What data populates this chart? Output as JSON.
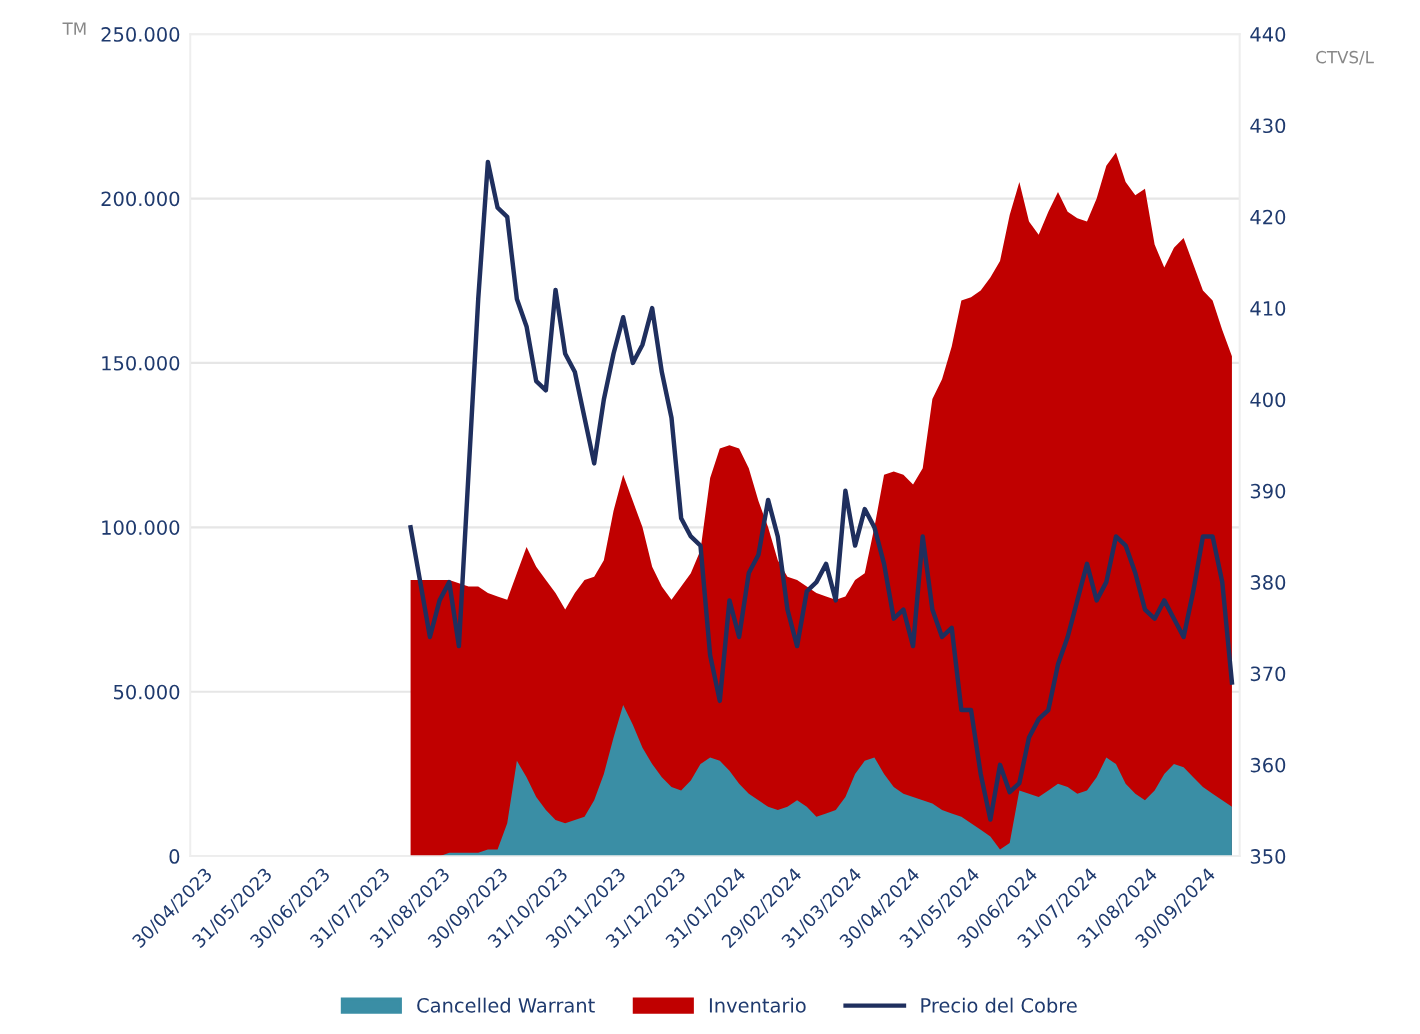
{
  "chart_data": {
    "type": "area",
    "ylabel": "TM",
    "y2label": "CTVS/L",
    "x": [
      "2023-08-15",
      "2023-08-20",
      "2023-08-25",
      "2023-08-30",
      "2023-09-04",
      "2023-09-09",
      "2023-09-14",
      "2023-09-19",
      "2023-09-24",
      "2023-09-29",
      "2023-10-04",
      "2023-10-09",
      "2023-10-14",
      "2023-10-19",
      "2023-10-24",
      "2023-10-29",
      "2023-11-03",
      "2023-11-08",
      "2023-11-13",
      "2023-11-18",
      "2023-11-23",
      "2023-11-28",
      "2023-12-03",
      "2023-12-08",
      "2023-12-13",
      "2023-12-18",
      "2023-12-23",
      "2023-12-28",
      "2024-01-02",
      "2024-01-07",
      "2024-01-12",
      "2024-01-17",
      "2024-01-22",
      "2024-01-27",
      "2024-02-01",
      "2024-02-06",
      "2024-02-11",
      "2024-02-16",
      "2024-02-21",
      "2024-02-26",
      "2024-03-02",
      "2024-03-07",
      "2024-03-12",
      "2024-03-17",
      "2024-03-22",
      "2024-03-27",
      "2024-04-01",
      "2024-04-06",
      "2024-04-11",
      "2024-04-16",
      "2024-04-21",
      "2024-04-26",
      "2024-05-01",
      "2024-05-06",
      "2024-05-11",
      "2024-05-16",
      "2024-05-21",
      "2024-05-26",
      "2024-05-31",
      "2024-06-05",
      "2024-06-10",
      "2024-06-15",
      "2024-06-20",
      "2024-06-25",
      "2024-06-30",
      "2024-07-05",
      "2024-07-10",
      "2024-07-15",
      "2024-07-20",
      "2024-07-25",
      "2024-07-30",
      "2024-08-04",
      "2024-08-09",
      "2024-08-14",
      "2024-08-19",
      "2024-08-24",
      "2024-08-29",
      "2024-09-03",
      "2024-09-08",
      "2024-09-13",
      "2024-09-18",
      "2024-09-23",
      "2024-09-28",
      "2024-10-03",
      "2024-10-08",
      "2024-10-13"
    ],
    "series": [
      {
        "name": "Cancelled Warrant",
        "color": "#3a8ea5",
        "values": [
          0,
          0,
          0,
          0,
          1000,
          1000,
          1000,
          1000,
          2000,
          2000,
          10000,
          29000,
          24000,
          18000,
          14000,
          11000,
          10000,
          11000,
          12000,
          17000,
          25000,
          36000,
          46000,
          40000,
          33000,
          28000,
          24000,
          21000,
          20000,
          23000,
          28000,
          30000,
          29000,
          26000,
          22000,
          19000,
          17000,
          15000,
          14000,
          15000,
          17000,
          15000,
          12000,
          13000,
          14000,
          18000,
          25000,
          29000,
          30000,
          25000,
          21000,
          19000,
          18000,
          17000,
          16000,
          14000,
          13000,
          12000,
          10000,
          8000,
          6000,
          2000,
          4000,
          20000,
          19000,
          18000,
          20000,
          22000,
          21000,
          19000,
          20000,
          24000,
          30000,
          28000,
          22000,
          19000,
          17000,
          20000,
          25000,
          28000,
          27000,
          24000,
          21000,
          19000,
          17000,
          15000
        ]
      },
      {
        "name": "Inventario",
        "color": "#c00000",
        "values": [
          84000,
          84000,
          84000,
          84000,
          84000,
          83000,
          82000,
          82000,
          80000,
          79000,
          78000,
          86000,
          94000,
          88000,
          84000,
          80000,
          75000,
          80000,
          84000,
          85000,
          90000,
          105000,
          116000,
          108000,
          100000,
          88000,
          82000,
          78000,
          82000,
          86000,
          93000,
          115000,
          124000,
          125000,
          124000,
          118000,
          108000,
          100000,
          90000,
          85000,
          84000,
          82000,
          80000,
          79000,
          78000,
          79000,
          84000,
          86000,
          100000,
          116000,
          117000,
          116000,
          113000,
          118000,
          139000,
          145000,
          155000,
          169000,
          170000,
          172000,
          176000,
          181000,
          195000,
          205000,
          193000,
          189000,
          196000,
          202000,
          196000,
          194000,
          193000,
          200000,
          210000,
          214000,
          205000,
          201000,
          203000,
          186000,
          179000,
          185000,
          188000,
          180000,
          172000,
          169000,
          160000,
          152000
        ]
      },
      {
        "name": "Precio del Cobre",
        "type": "line",
        "axis": "y2",
        "color": "#1f2f5e",
        "values": [
          386,
          380,
          374,
          378,
          380,
          373,
          392,
          411,
          426,
          421,
          420,
          411,
          408,
          402,
          401,
          412,
          405,
          403,
          398,
          393,
          400,
          405,
          409,
          404,
          406,
          410,
          403,
          398,
          387,
          385,
          384,
          372,
          367,
          378,
          374,
          381,
          383,
          389,
          385,
          377,
          373,
          379,
          380,
          382,
          378,
          390,
          384,
          388,
          386,
          382,
          376,
          377,
          373,
          385,
          377,
          374,
          375,
          366,
          366,
          359,
          354,
          360,
          357,
          358,
          363,
          365,
          366,
          371,
          374,
          378,
          382,
          378,
          380,
          385,
          384,
          381,
          377,
          376,
          378,
          376,
          374,
          379,
          385,
          385,
          380,
          369
        ]
      }
    ],
    "xlim": [
      "2023-04-23",
      "2024-10-17"
    ],
    "xticks": [
      {
        "value": "2023-04-30",
        "label": "30/04/2023"
      },
      {
        "value": "2023-05-31",
        "label": "31/05/2023"
      },
      {
        "value": "2023-06-30",
        "label": "30/06/2023"
      },
      {
        "value": "2023-07-31",
        "label": "31/07/2023"
      },
      {
        "value": "2023-08-31",
        "label": "31/08/2023"
      },
      {
        "value": "2023-09-30",
        "label": "30/09/2023"
      },
      {
        "value": "2023-10-31",
        "label": "31/10/2023"
      },
      {
        "value": "2023-11-30",
        "label": "30/11/2023"
      },
      {
        "value": "2023-12-31",
        "label": "31/12/2023"
      },
      {
        "value": "2024-01-31",
        "label": "31/01/2024"
      },
      {
        "value": "2024-02-29",
        "label": "29/02/2024"
      },
      {
        "value": "2024-03-31",
        "label": "31/03/2024"
      },
      {
        "value": "2024-04-30",
        "label": "30/04/2024"
      },
      {
        "value": "2024-05-31",
        "label": "31/05/2024"
      },
      {
        "value": "2024-06-30",
        "label": "30/06/2024"
      },
      {
        "value": "2024-07-31",
        "label": "31/07/2024"
      },
      {
        "value": "2024-08-31",
        "label": "31/08/2024"
      },
      {
        "value": "2024-09-30",
        "label": "30/09/2024"
      }
    ],
    "ylim": [
      0,
      250000
    ],
    "yticks": [
      0,
      {
        "value": 50000,
        "label": "50.000"
      },
      {
        "value": 100000,
        "label": "100.000"
      },
      {
        "value": 150000,
        "label": "150.000"
      },
      {
        "value": 200000,
        "label": "200.000"
      },
      {
        "value": 250000,
        "label": "250.000"
      }
    ],
    "y2lim": [
      350,
      440
    ],
    "y2ticks": [
      350,
      360,
      370,
      380,
      390,
      400,
      410,
      420,
      430,
      440
    ],
    "grid": "y",
    "legend": "bottom",
    "line_style": "solid",
    "marker": "none"
  }
}
